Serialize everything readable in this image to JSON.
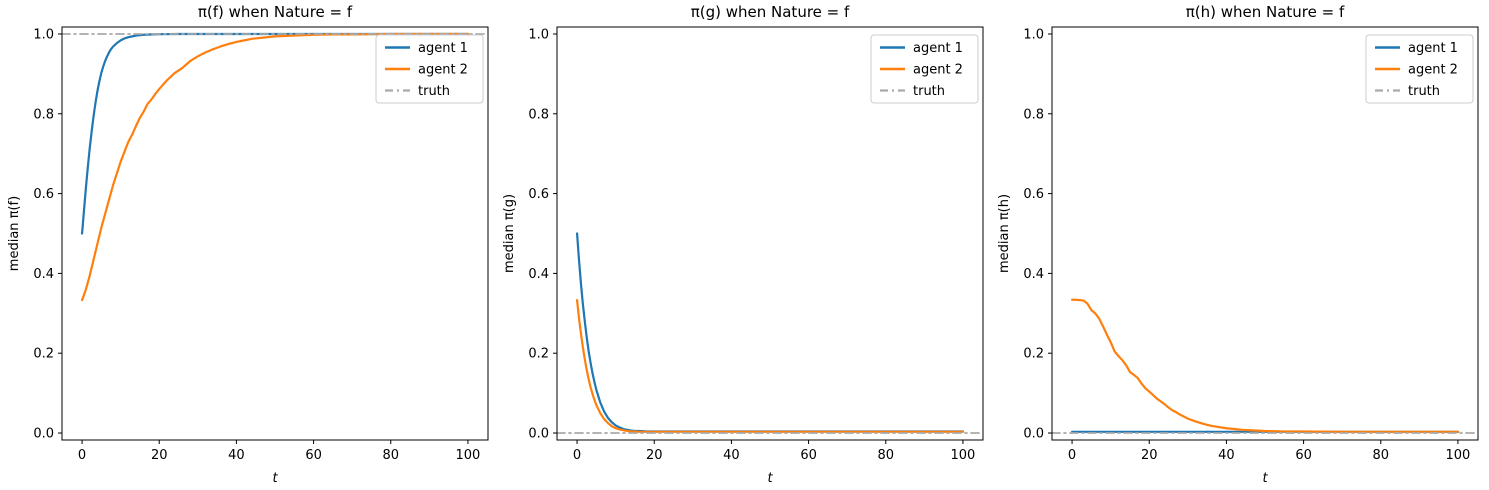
{
  "figure": {
    "background": "#ffffff",
    "colors": {
      "agent1": "#1f77b4",
      "agent2": "#ff7f0e",
      "truth": "#a9a9a9",
      "spine": "#000000",
      "legend_border": "#cccccc"
    }
  },
  "chart_data": [
    {
      "type": "line",
      "title": "π(f) when Nature = f",
      "xlabel": "t",
      "ylabel": "median π(f)",
      "xlim": [
        -5.2,
        105.2
      ],
      "ylim": [
        -0.0175,
        1.0175
      ],
      "grid": false,
      "legend_position": "upper right",
      "xticks": {
        "positions": [
          0,
          20,
          40,
          60,
          80,
          100
        ],
        "labels": [
          "0",
          "20",
          "40",
          "60",
          "80",
          "100"
        ]
      },
      "yticks": {
        "positions": [
          0.0,
          0.2,
          0.4,
          0.6,
          0.8,
          1.0
        ],
        "labels": [
          "0.0",
          "0.2",
          "0.4",
          "0.6",
          "0.8",
          "1.0"
        ]
      },
      "series": [
        {
          "name": "agent 1",
          "color": "#1f77b4",
          "style": "solid",
          "width": 2.2,
          "x": [
            0,
            0.5,
            1,
            1.5,
            2,
            2.5,
            3,
            3.5,
            4,
            4.5,
            5,
            5.5,
            6,
            6.5,
            7,
            7.5,
            8,
            9,
            10,
            11,
            12,
            13,
            14,
            16,
            18,
            20,
            25,
            30,
            40,
            50,
            60,
            70,
            80,
            90,
            100
          ],
          "y": [
            0.5,
            0.558,
            0.615,
            0.667,
            0.715,
            0.757,
            0.795,
            0.829,
            0.858,
            0.882,
            0.903,
            0.919,
            0.933,
            0.944,
            0.954,
            0.962,
            0.968,
            0.977,
            0.984,
            0.989,
            0.992,
            0.994,
            0.996,
            0.998,
            0.999,
            0.9995,
            1.0,
            1.0,
            1.0,
            1.0,
            1.0,
            1.0,
            1.0,
            1.0,
            1.0
          ]
        },
        {
          "name": "agent 2",
          "color": "#ff7f0e",
          "style": "solid",
          "width": 2.2,
          "x": [
            0,
            1,
            2,
            3,
            4,
            5,
            6,
            7,
            8,
            9,
            10,
            11,
            12,
            13,
            14,
            15,
            16,
            17,
            18,
            19,
            20,
            22,
            24,
            26,
            28,
            30,
            32,
            34,
            36,
            38,
            40,
            42,
            44,
            46,
            48,
            50,
            55,
            60,
            65,
            70,
            80,
            90,
            100
          ],
          "y": [
            0.333,
            0.36,
            0.395,
            0.435,
            0.475,
            0.515,
            0.55,
            0.585,
            0.62,
            0.65,
            0.68,
            0.705,
            0.73,
            0.748,
            0.77,
            0.79,
            0.806,
            0.825,
            0.836,
            0.85,
            0.862,
            0.884,
            0.902,
            0.915,
            0.932,
            0.944,
            0.954,
            0.962,
            0.969,
            0.975,
            0.98,
            0.984,
            0.988,
            0.99,
            0.992,
            0.994,
            0.996,
            0.998,
            0.999,
            0.999,
            1.0,
            1.0,
            1.0
          ]
        },
        {
          "name": "truth",
          "color": "#a9a9a9",
          "style": "dashdot",
          "width": 1.8,
          "x": [
            -5.2,
            105.2
          ],
          "y": [
            1.0,
            1.0
          ]
        }
      ]
    },
    {
      "type": "line",
      "title": "π(g) when Nature = f",
      "xlabel": "t",
      "ylabel": "median π(g)",
      "xlim": [
        -5.2,
        105.2
      ],
      "ylim": [
        -0.0175,
        1.0175
      ],
      "grid": false,
      "legend_position": "upper right",
      "xticks": {
        "positions": [
          0,
          20,
          40,
          60,
          80,
          100
        ],
        "labels": [
          "0",
          "20",
          "40",
          "60",
          "80",
          "100"
        ]
      },
      "yticks": {
        "positions": [
          0.0,
          0.2,
          0.4,
          0.6,
          0.8,
          1.0
        ],
        "labels": [
          "0.0",
          "0.2",
          "0.4",
          "0.6",
          "0.8",
          "1.0"
        ]
      },
      "series": [
        {
          "name": "agent 1",
          "color": "#1f77b4",
          "style": "solid",
          "width": 2.2,
          "x": [
            0,
            0.5,
            1,
            1.5,
            2,
            2.5,
            3,
            3.5,
            4,
            4.5,
            5,
            6,
            7,
            8,
            9,
            10,
            11,
            12,
            13,
            14,
            15,
            16,
            18,
            20,
            25,
            30,
            40,
            50,
            60,
            70,
            80,
            90,
            100
          ],
          "y": [
            0.5,
            0.434,
            0.375,
            0.324,
            0.28,
            0.24,
            0.205,
            0.176,
            0.15,
            0.128,
            0.108,
            0.077,
            0.054,
            0.038,
            0.027,
            0.019,
            0.014,
            0.01,
            0.008,
            0.006,
            0.005,
            0.005,
            0.004,
            0.004,
            0.004,
            0.004,
            0.004,
            0.004,
            0.004,
            0.004,
            0.004,
            0.004,
            0.004
          ]
        },
        {
          "name": "agent 2",
          "color": "#ff7f0e",
          "style": "solid",
          "width": 2.2,
          "x": [
            0,
            0.5,
            1,
            1.5,
            2,
            2.5,
            3,
            3.5,
            4,
            4.5,
            5,
            6,
            7,
            8,
            9,
            10,
            11,
            12,
            13,
            14,
            15,
            16,
            18,
            20,
            25,
            30,
            40,
            50,
            60,
            70,
            80,
            90,
            100
          ],
          "y": [
            0.333,
            0.288,
            0.25,
            0.215,
            0.185,
            0.158,
            0.135,
            0.115,
            0.098,
            0.083,
            0.07,
            0.05,
            0.035,
            0.025,
            0.017,
            0.012,
            0.009,
            0.007,
            0.005,
            0.004,
            0.004,
            0.003,
            0.003,
            0.003,
            0.003,
            0.003,
            0.003,
            0.003,
            0.003,
            0.003,
            0.003,
            0.003,
            0.003
          ]
        },
        {
          "name": "truth",
          "color": "#a9a9a9",
          "style": "dashdot",
          "width": 1.8,
          "x": [
            -5.2,
            105.2
          ],
          "y": [
            0.0,
            0.0
          ]
        }
      ]
    },
    {
      "type": "line",
      "title": "π(h) when Nature = f",
      "xlabel": "t",
      "ylabel": "median π(h)",
      "xlim": [
        -5.2,
        105.2
      ],
      "ylim": [
        -0.0175,
        1.0175
      ],
      "grid": false,
      "legend_position": "upper right",
      "xticks": {
        "positions": [
          0,
          20,
          40,
          60,
          80,
          100
        ],
        "labels": [
          "0",
          "20",
          "40",
          "60",
          "80",
          "100"
        ]
      },
      "yticks": {
        "positions": [
          0.0,
          0.2,
          0.4,
          0.6,
          0.8,
          1.0
        ],
        "labels": [
          "0.0",
          "0.2",
          "0.4",
          "0.6",
          "0.8",
          "1.0"
        ]
      },
      "series": [
        {
          "name": "agent 1",
          "color": "#1f77b4",
          "style": "solid",
          "width": 2.2,
          "x": [
            0,
            100
          ],
          "y": [
            0.003,
            0.003
          ]
        },
        {
          "name": "agent 2",
          "color": "#ff7f0e",
          "style": "solid",
          "width": 2.2,
          "x": [
            0,
            1,
            2,
            3,
            4,
            5,
            6,
            7,
            8,
            9,
            10,
            11,
            12,
            13,
            14,
            15,
            16,
            17,
            18,
            19,
            20,
            21,
            22,
            23,
            24,
            25,
            26,
            27,
            28,
            29,
            30,
            32,
            34,
            36,
            38,
            40,
            42,
            44,
            46,
            48,
            50,
            55,
            60,
            70,
            80,
            90,
            100
          ],
          "y": [
            0.334,
            0.334,
            0.333,
            0.332,
            0.324,
            0.308,
            0.3,
            0.287,
            0.268,
            0.247,
            0.228,
            0.205,
            0.193,
            0.183,
            0.17,
            0.153,
            0.146,
            0.138,
            0.124,
            0.112,
            0.104,
            0.095,
            0.086,
            0.079,
            0.072,
            0.064,
            0.057,
            0.052,
            0.046,
            0.041,
            0.036,
            0.029,
            0.023,
            0.018,
            0.015,
            0.012,
            0.01,
            0.008,
            0.007,
            0.006,
            0.005,
            0.004,
            0.004,
            0.003,
            0.003,
            0.003,
            0.003
          ]
        },
        {
          "name": "truth",
          "color": "#a9a9a9",
          "style": "dashdot",
          "width": 1.8,
          "x": [
            -5.2,
            105.2
          ],
          "y": [
            0.0,
            0.0
          ]
        }
      ]
    }
  ]
}
